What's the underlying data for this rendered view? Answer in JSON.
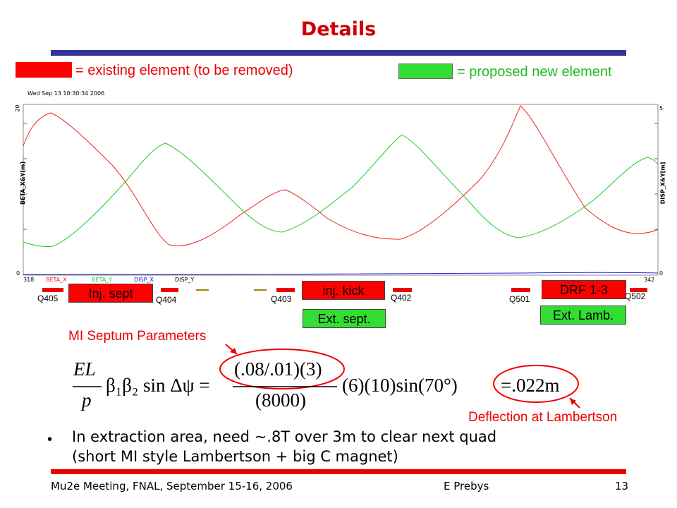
{
  "slide": {
    "title": "Details",
    "legend_existing": "= existing element (to be removed)",
    "legend_proposed": "= proposed new element",
    "colors": {
      "accent_title": "#cc0000",
      "rule_blue": "#333399",
      "red": "#ff0000",
      "green": "#33dd33"
    }
  },
  "plot": {
    "timestamp": "Wed Sep 13 10:30:34 2006",
    "left_axis_label": "BETA_X&Y[m]",
    "right_axis_label": "DISP_X&Y[m]",
    "left_tick_top": "20",
    "left_tick_bottom": "0",
    "right_tick_top": "5",
    "right_tick_bottom": "0",
    "x_start": "318",
    "x_end": "342",
    "legend": [
      "BETA_X",
      "BETA_Y",
      "DISP_X",
      "DISP_Y"
    ]
  },
  "elements": {
    "inj_sept": "Inj. sept",
    "inj_kick": "inj. kick",
    "drf": "DRF 1-3",
    "ext_sept": "Ext. sept.",
    "ext_lamb": "Ext. Lamb."
  },
  "quads": [
    "Q405",
    "Q404",
    "Q403",
    "Q402",
    "Q501",
    "Q502"
  ],
  "params": {
    "heading": "MI Septum Parameters",
    "deflection_label": "Deflection at Lambertson",
    "eq_num_left": "EL",
    "eq_den_left": "p",
    "eq_beta": "β₁β₂ sin Δψ =",
    "eq_num_right": "(.08/.01)(3)",
    "eq_den_right": "(8000)",
    "eq_tail": "(6)(10)sin(70°)",
    "eq_result": "=.022m"
  },
  "bullets": {
    "line1": "In extraction area, need ~.8T over 3m to clear next quad",
    "line2": "(short MI style Lambertson + big C magnet)"
  },
  "footer": {
    "left": "Mu2e Meeting, FNAL, September 15-16, 2006",
    "center": "E Prebys",
    "page": "13"
  }
}
